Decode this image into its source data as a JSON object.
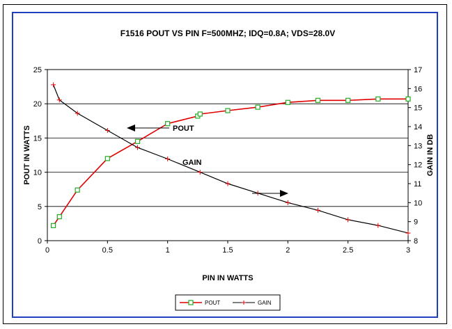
{
  "chart_data": {
    "type": "line",
    "title": "F1516  POUT VS PIN F=500MHZ; IDQ=0.8A; VDS=28.0V",
    "xlabel": "PIN IN WATTS",
    "ylabel_left": "POUT IN WATTS",
    "ylabel_right": "GAIN IN DB",
    "xlim": [
      0,
      3
    ],
    "ylim_left": [
      0,
      25
    ],
    "ylim_right": [
      8,
      17
    ],
    "x_ticks": [
      "0",
      "0.5",
      "1",
      "1.5",
      "2",
      "2.5",
      "3"
    ],
    "y_left_ticks": [
      "0",
      "5",
      "10",
      "15",
      "20",
      "25"
    ],
    "y_right_ticks": [
      "8",
      "9",
      "10",
      "11",
      "12",
      "13",
      "14",
      "15",
      "16",
      "17"
    ],
    "grid": "horizontal",
    "legend_position": "bottom",
    "annotations": {
      "pout": "POUT",
      "gain": "GAIN"
    },
    "series": [
      {
        "name": "POUT",
        "axis": "left",
        "color": "#e00000",
        "marker": "square",
        "marker_color": "#22aa22",
        "x": [
          0.05,
          0.1,
          0.25,
          0.5,
          0.75,
          1.0,
          1.25,
          1.27,
          1.5,
          1.75,
          2.0,
          2.25,
          2.5,
          2.75,
          3.0
        ],
        "y": [
          2.2,
          3.5,
          7.4,
          12.0,
          14.5,
          17.1,
          18.2,
          18.5,
          19.0,
          19.5,
          20.2,
          20.5,
          20.5,
          20.7,
          20.7
        ]
      },
      {
        "name": "GAIN",
        "axis": "right",
        "color": "#000000",
        "marker": "plus",
        "marker_color": "#e00000",
        "x": [
          0.05,
          0.1,
          0.25,
          0.5,
          0.75,
          1.0,
          1.27,
          1.5,
          1.75,
          2.0,
          2.25,
          2.5,
          2.75,
          3.0
        ],
        "y": [
          16.2,
          15.4,
          14.7,
          13.8,
          12.9,
          12.3,
          11.6,
          11.0,
          10.5,
          10.0,
          9.6,
          9.1,
          8.8,
          8.4
        ]
      }
    ]
  }
}
